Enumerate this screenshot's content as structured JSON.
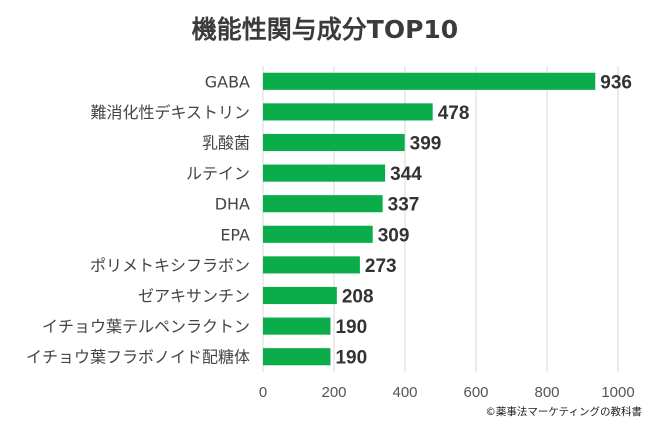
{
  "chart_data": {
    "type": "bar",
    "orientation": "horizontal",
    "title": "機能性関与成分TOP10",
    "categories": [
      "GABA",
      "難消化性デキストリン",
      "乳酸菌",
      "ルテイン",
      "DHA",
      "EPA",
      "ポリメトキシフラボン",
      "ゼアキサンチン",
      "イチョウ葉テルペンラクトン",
      "イチョウ葉フラボノイド配糖体"
    ],
    "values": [
      936,
      478,
      399,
      344,
      337,
      309,
      273,
      208,
      190,
      190
    ],
    "xlim": [
      0,
      1000
    ],
    "xticks": [
      0,
      200,
      400,
      600,
      800,
      1000
    ],
    "xlabel": "",
    "ylabel": "",
    "grid": true,
    "bar_color": "#0aad4a"
  },
  "credit": "©薬事法マーケティングの教科書"
}
